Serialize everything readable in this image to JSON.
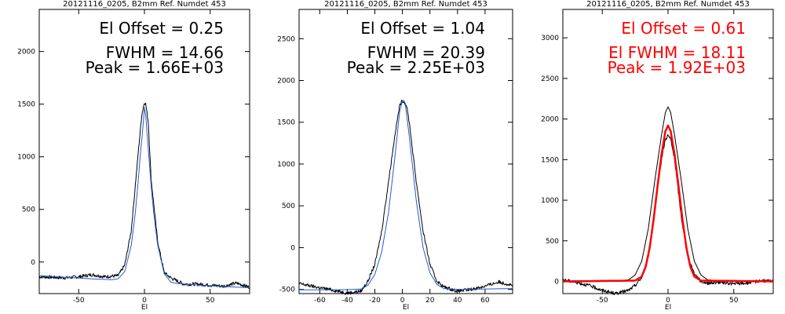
{
  "colors": {
    "black": "#000000",
    "blue": "#1f5fd0",
    "red": "#ff0000",
    "background": "#ffffff"
  },
  "chart_data": [
    {
      "type": "line",
      "title": "20121116_0205, B2mm Ref. Numdet 453",
      "xlabel": "El",
      "ylabel": "",
      "xlim": [
        -80,
        80
      ],
      "ylim": [
        -300,
        2400
      ],
      "xticks": [
        -50,
        0,
        50
      ],
      "yticks": [
        0,
        500,
        1000,
        1500,
        2000
      ],
      "annotations": [
        "El Offset = 0.25",
        "FWHM = 14.66",
        "Peak = 1.66E+03"
      ],
      "annotation_color": "#000000",
      "series": [
        {
          "color": "#000000",
          "style": "noisy",
          "x": [
            -80,
            -60,
            -50,
            -40,
            -30,
            -20,
            -15,
            -10,
            -5,
            -2,
            0,
            1,
            3,
            5,
            10,
            15,
            20,
            30,
            40,
            50,
            60,
            70,
            80
          ],
          "y": [
            -140,
            -150,
            -140,
            -120,
            -140,
            -130,
            -30,
            300,
            1000,
            1400,
            1520,
            1500,
            1320,
            800,
            200,
            -100,
            -150,
            -210,
            -210,
            -220,
            -230,
            -200,
            -240
          ]
        },
        {
          "color": "#1f5fd0",
          "style": "smooth",
          "x": [
            -80,
            -60,
            -40,
            -25,
            -20,
            -15,
            -10,
            -7,
            -5,
            -3,
            -1,
            0,
            1,
            3,
            5,
            7,
            10,
            15,
            20,
            25,
            40,
            60,
            80
          ],
          "y": [
            -130,
            -145,
            -160,
            -168,
            -160,
            -90,
            160,
            460,
            730,
            1040,
            1300,
            1470,
            1390,
            1060,
            740,
            470,
            165,
            -110,
            -190,
            -205,
            -218,
            -232,
            -245
          ]
        }
      ]
    },
    {
      "type": "line",
      "title": "20121116_0205, B2mm Ref. Numdet 453",
      "xlabel": "El",
      "ylabel": "",
      "xlim": [
        -75,
        80
      ],
      "ylim": [
        -550,
        2850
      ],
      "xticks": [
        -60,
        -40,
        -20,
        0,
        20,
        40,
        60
      ],
      "yticks": [
        -500,
        0,
        500,
        1000,
        1500,
        2000,
        2500
      ],
      "annotations": [
        "El Offset = 1.04",
        "FWHM = 20.39",
        "Peak = 2.25E+03"
      ],
      "annotation_color": "#000000",
      "series": [
        {
          "color": "#000000",
          "style": "noisy",
          "x": [
            -75,
            -60,
            -50,
            -40,
            -30,
            -25,
            -20,
            -15,
            -10,
            -5,
            -2,
            0,
            1,
            3,
            5,
            10,
            15,
            20,
            25,
            30,
            40,
            50,
            60,
            70,
            80
          ],
          "y": [
            -430,
            -480,
            -510,
            -545,
            -520,
            -400,
            -200,
            200,
            800,
            1400,
            1700,
            1760,
            1750,
            1700,
            1500,
            800,
            200,
            -200,
            -400,
            -470,
            -520,
            -500,
            -460,
            -410,
            -450
          ]
        },
        {
          "color": "#1f5fd0",
          "style": "smooth",
          "x": [
            -75,
            -50,
            -40,
            -30,
            -25,
            -20,
            -15,
            -10,
            -5,
            -2,
            0,
            1,
            2,
            5,
            10,
            15,
            20,
            25,
            30,
            40,
            60,
            80
          ],
          "y": [
            -505,
            -504,
            -503,
            -495,
            -450,
            -320,
            -50,
            430,
            1150,
            1630,
            1760,
            1760,
            1730,
            1330,
            570,
            0,
            -300,
            -440,
            -490,
            -500,
            -495,
            -490
          ]
        }
      ]
    },
    {
      "type": "line",
      "title": "20121116_0205, B2mm Ref. Numdet 453",
      "xlabel": "El",
      "ylabel": "",
      "xlim": [
        -80,
        80
      ],
      "ylim": [
        -150,
        3350
      ],
      "xticks": [
        -50,
        0,
        50
      ],
      "yticks": [
        0,
        500,
        1000,
        1500,
        2000,
        2500,
        3000
      ],
      "annotations": [
        "El Offset = 0.61",
        "El FWHM = 18.11",
        "Peak = 1.92E+03"
      ],
      "annotation_color": "#ff0000",
      "series": [
        {
          "color": "#000000",
          "style": "noisy",
          "x": [
            -80,
            -70,
            -60,
            -50,
            -40,
            -30,
            -25,
            -20,
            -15,
            -10,
            -5,
            -2,
            0,
            2,
            5,
            10,
            15,
            20,
            25,
            30,
            40,
            50,
            60,
            70,
            80
          ],
          "y": [
            20,
            -10,
            -50,
            -110,
            -150,
            -110,
            -50,
            50,
            300,
            900,
            1500,
            1750,
            1800,
            1750,
            1500,
            800,
            300,
            100,
            0,
            -20,
            -10,
            -30,
            -20,
            10,
            0
          ]
        },
        {
          "color": "#000000",
          "style": "smooth",
          "x": [
            -80,
            -40,
            -30,
            -25,
            -20,
            -15,
            -10,
            -5,
            -2,
            0,
            2,
            5,
            10,
            15,
            20,
            25,
            30,
            40,
            80
          ],
          "y": [
            0,
            5,
            20,
            80,
            250,
            650,
            1250,
            1800,
            2080,
            2150,
            2080,
            1800,
            1250,
            650,
            250,
            80,
            20,
            5,
            0
          ]
        },
        {
          "color": "#ff0000",
          "style": "thick",
          "x": [
            -80,
            -25,
            -20,
            -17,
            -14,
            -11,
            -8,
            -5,
            -2,
            0,
            2,
            5,
            8,
            11,
            14,
            17,
            20,
            25,
            80
          ],
          "y": [
            0,
            10,
            60,
            180,
            410,
            760,
            1170,
            1560,
            1850,
            1920,
            1850,
            1560,
            1170,
            760,
            410,
            180,
            60,
            10,
            0
          ]
        }
      ]
    }
  ]
}
